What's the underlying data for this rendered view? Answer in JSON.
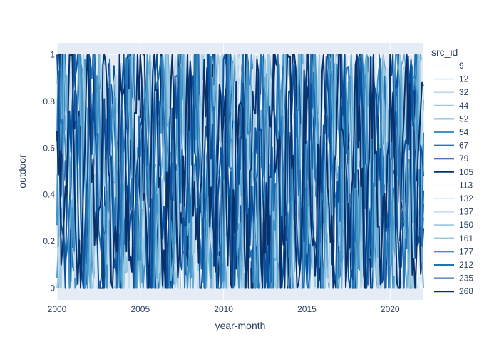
{
  "chart_data": {
    "type": "line",
    "title": "",
    "xlabel": "year-month",
    "ylabel": "outdoor",
    "x_range": [
      2000,
      2022
    ],
    "y_range": [
      -0.05,
      1.05
    ],
    "x_ticks": [
      2000,
      2005,
      2010,
      2015,
      2020
    ],
    "y_ticks": [
      0,
      0.2,
      0.4,
      0.6,
      0.8,
      1
    ],
    "x_tick_labels": [
      "2000",
      "2005",
      "2010",
      "2015",
      "2020"
    ],
    "y_tick_labels": [
      "0",
      "0.2",
      "0.4",
      "0.6",
      "0.8",
      "1"
    ],
    "legend_title": "src_id",
    "legend_position": "right",
    "plot_background": "#e5ecf6",
    "grid": true,
    "series": [
      {
        "name": "9",
        "color": "#f7fbff"
      },
      {
        "name": "12",
        "color": "#deebf7"
      },
      {
        "name": "32",
        "color": "#c6dbef"
      },
      {
        "name": "44",
        "color": "#9ecae1"
      },
      {
        "name": "52",
        "color": "#6baed6"
      },
      {
        "name": "54",
        "color": "#4292c6"
      },
      {
        "name": "67",
        "color": "#2171b5"
      },
      {
        "name": "79",
        "color": "#08519c"
      },
      {
        "name": "105",
        "color": "#08306b"
      },
      {
        "name": "113",
        "color": "#f7fbff"
      },
      {
        "name": "132",
        "color": "#deebf7"
      },
      {
        "name": "137",
        "color": "#c6dbef"
      },
      {
        "name": "150",
        "color": "#9ecae1"
      },
      {
        "name": "161",
        "color": "#6baed6"
      },
      {
        "name": "177",
        "color": "#4292c6"
      },
      {
        "name": "212",
        "color": "#2171b5"
      },
      {
        "name": "235",
        "color": "#08519c"
      },
      {
        "name": "268",
        "color": "#08306b"
      }
    ]
  }
}
